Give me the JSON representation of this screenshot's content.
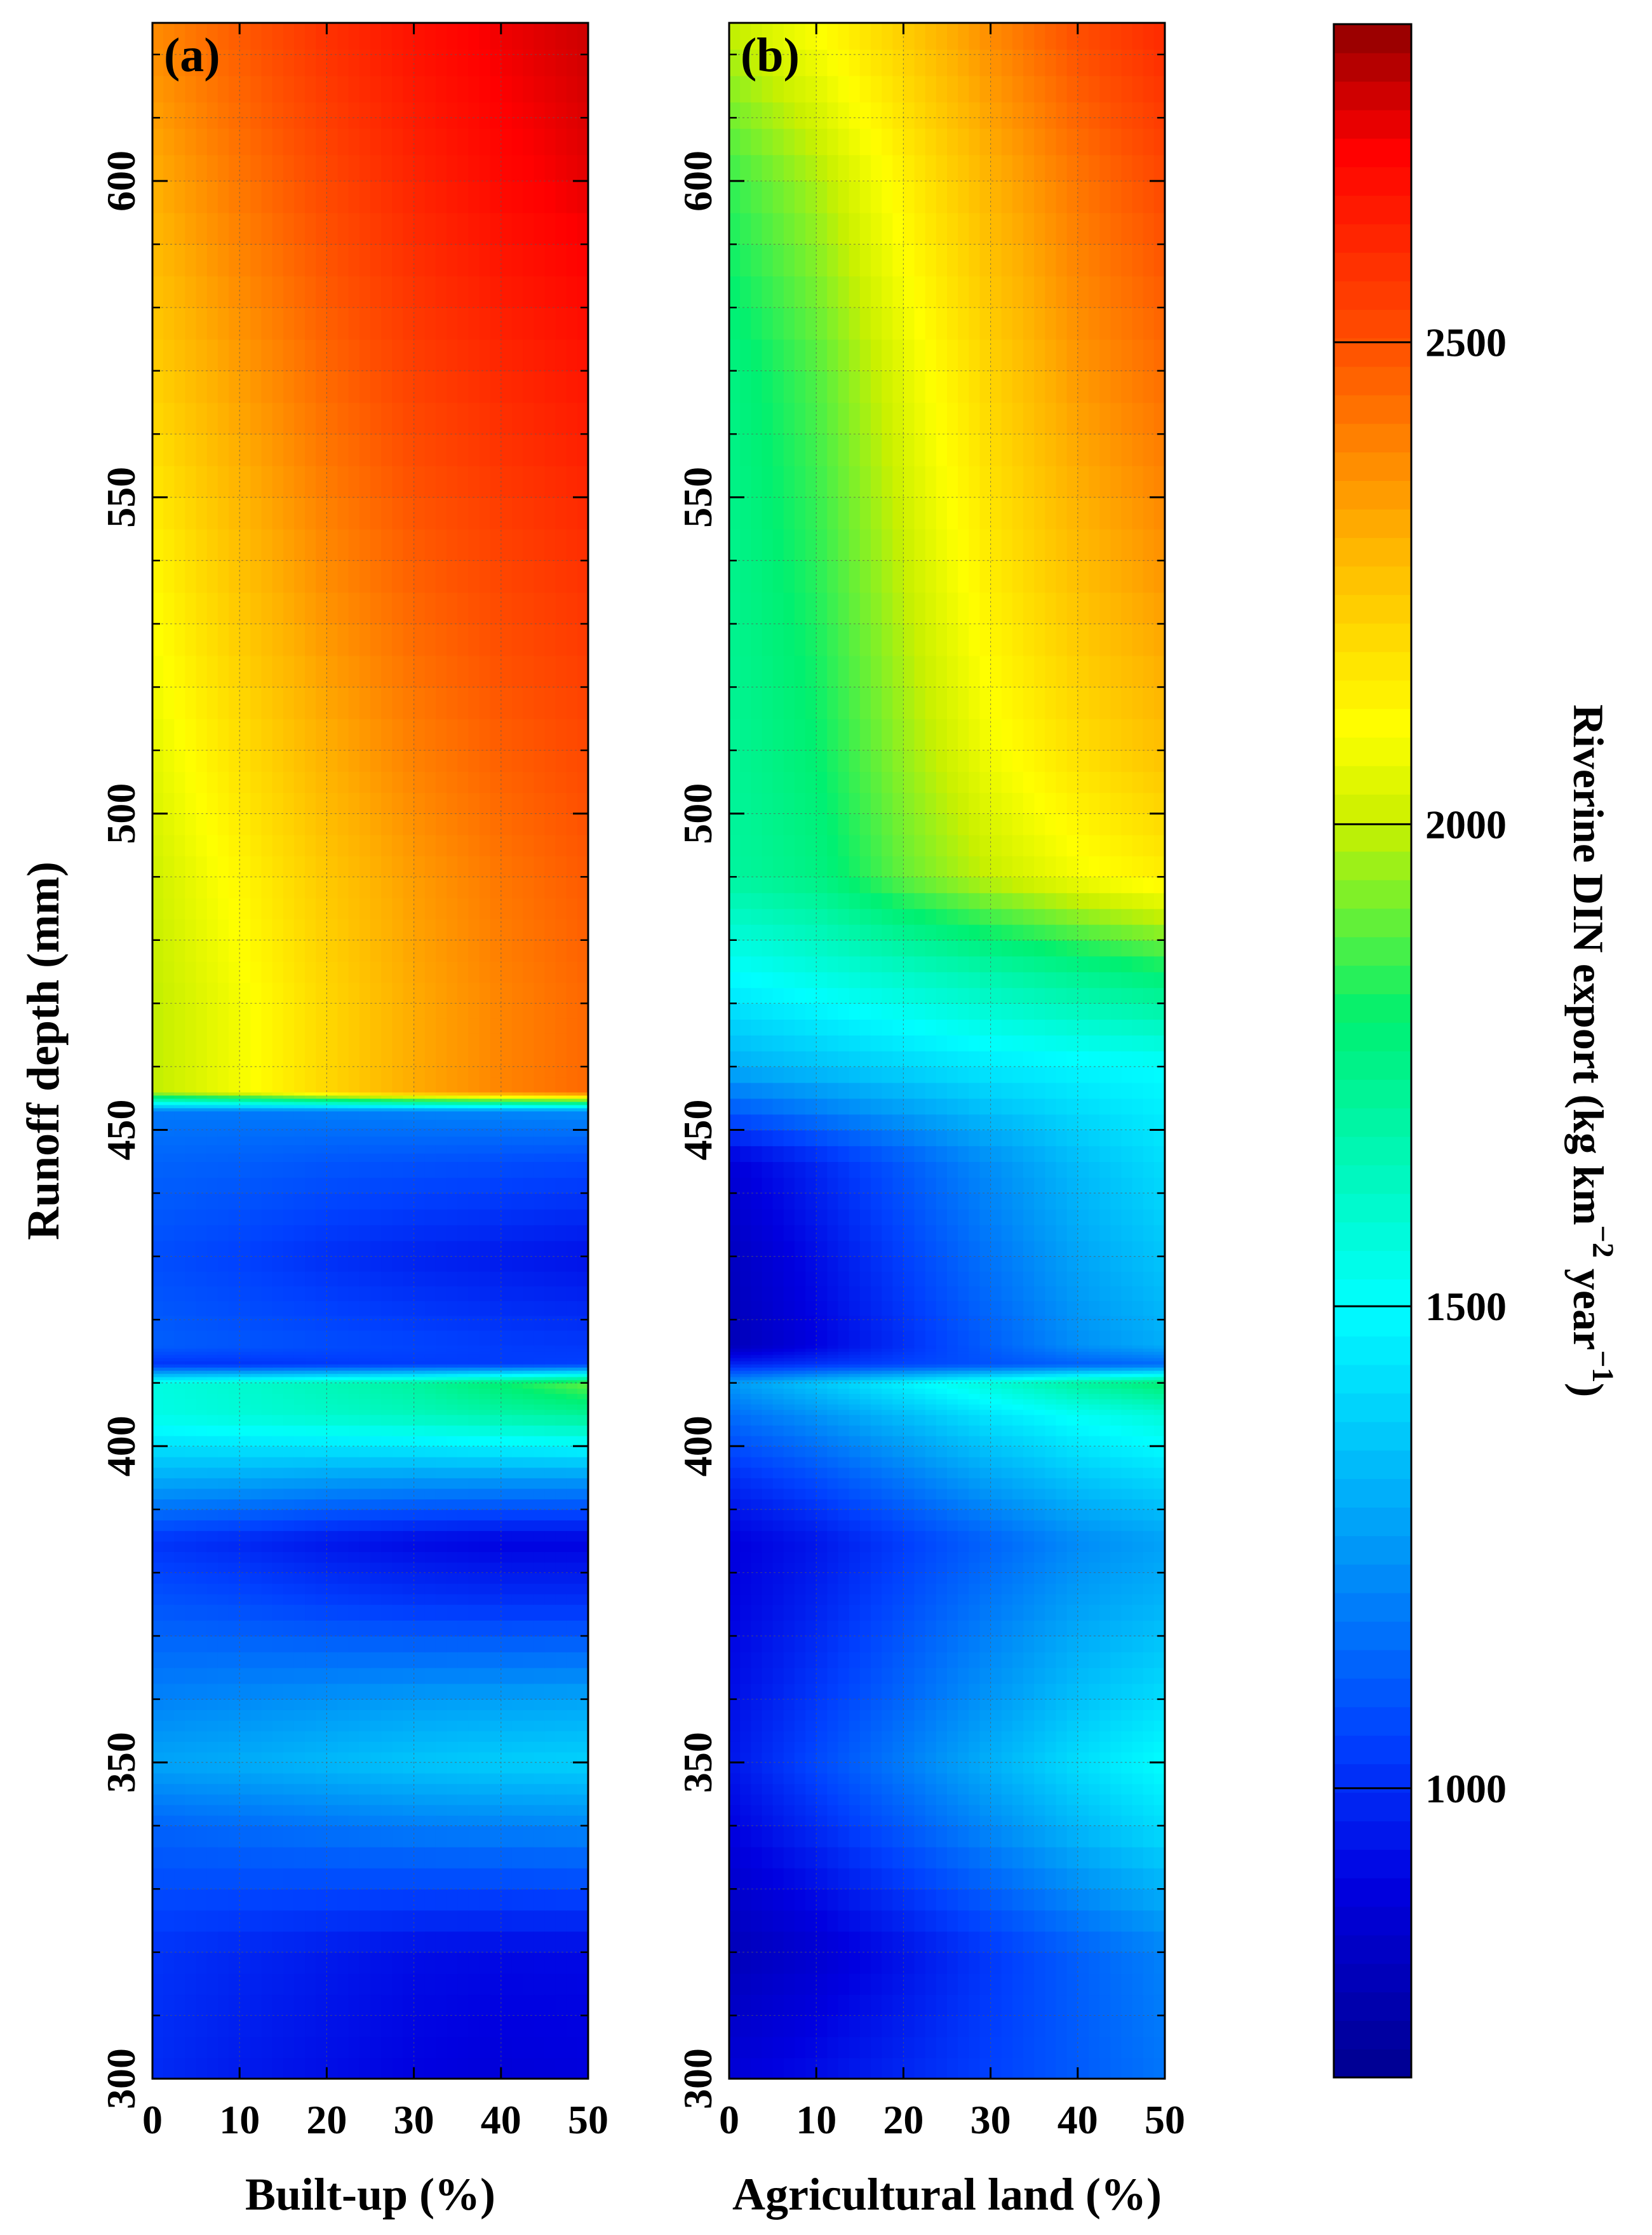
{
  "colorbar": {
    "label_main": "Riverine DIN export (kg km",
    "label_exp1": "−2",
    "label_mid": " year",
    "label_exp2": "−1",
    "label_close": ")",
    "range": [
      700,
      2830
    ],
    "ticks": [
      1000,
      1500,
      2000,
      2500
    ],
    "tick_labels": [
      "1000",
      "1500",
      "2000",
      "2500"
    ],
    "colors": [
      {
        "v": 700,
        "c": "#00008f"
      },
      {
        "v": 900,
        "c": "#0000e0"
      },
      {
        "v": 1050,
        "c": "#0040ff"
      },
      {
        "v": 1250,
        "c": "#0098f8"
      },
      {
        "v": 1500,
        "c": "#00ffff"
      },
      {
        "v": 1800,
        "c": "#00f070"
      },
      {
        "v": 2000,
        "c": "#c8f000"
      },
      {
        "v": 2100,
        "c": "#ffff00"
      },
      {
        "v": 2300,
        "c": "#ffb000"
      },
      {
        "v": 2500,
        "c": "#ff5000"
      },
      {
        "v": 2700,
        "c": "#ff0000"
      },
      {
        "v": 2830,
        "c": "#8f0000"
      }
    ]
  },
  "chart_data": [
    {
      "type": "heatmap",
      "panel_label": "(a)",
      "xlabel": "Built-up (%)",
      "ylabel": "Runoff depth (mm)",
      "xlim": [
        0,
        50
      ],
      "ylim": [
        300,
        625
      ],
      "x_ticks": [
        0,
        10,
        20,
        30,
        40,
        50
      ],
      "x_tick_labels": [
        "0",
        "10",
        "20",
        "30",
        "40",
        "50"
      ],
      "y_ticks": [
        300,
        350,
        400,
        450,
        500,
        550,
        600
      ],
      "y_tick_labels": [
        "300",
        "350",
        "400",
        "450",
        "500",
        "550",
        "600"
      ],
      "grid": true,
      "x": [
        0,
        10,
        20,
        30,
        40,
        50
      ],
      "y": [
        300,
        320,
        340,
        350,
        360,
        375,
        385,
        395,
        405,
        410,
        413,
        416,
        430,
        445,
        453,
        456,
        470,
        490,
        510,
        540,
        570,
        600,
        625
      ],
      "z": [
        [
          1000,
          960,
          930,
          900,
          880,
          890
        ],
        [
          1020,
          990,
          960,
          930,
          920,
          920
        ],
        [
          1130,
          1150,
          1170,
          1190,
          1200,
          1210
        ],
        [
          1280,
          1300,
          1330,
          1360,
          1380,
          1390
        ],
        [
          1200,
          1220,
          1240,
          1260,
          1270,
          1280
        ],
        [
          1100,
          1080,
          1050,
          1030,
          1020,
          1020
        ],
        [
          1020,
          990,
          950,
          920,
          900,
          900
        ],
        [
          1300,
          1290,
          1270,
          1260,
          1260,
          1260
        ],
        [
          1550,
          1580,
          1610,
          1640,
          1680,
          1720
        ],
        [
          1560,
          1600,
          1650,
          1700,
          1800,
          1900
        ],
        [
          1020,
          1020,
          1030,
          1040,
          1040,
          1050
        ],
        [
          1120,
          1100,
          1080,
          1060,
          1040,
          1030
        ],
        [
          1080,
          1050,
          1010,
          980,
          960,
          940
        ],
        [
          1130,
          1120,
          1100,
          1090,
          1080,
          1070
        ],
        [
          1180,
          1180,
          1190,
          1200,
          1210,
          1220
        ],
        [
          1990,
          2080,
          2200,
          2310,
          2390,
          2450
        ],
        [
          1990,
          2080,
          2200,
          2310,
          2390,
          2450
        ],
        [
          2010,
          2120,
          2240,
          2340,
          2420,
          2480
        ],
        [
          2050,
          2180,
          2300,
          2400,
          2470,
          2520
        ],
        [
          2120,
          2260,
          2380,
          2470,
          2530,
          2580
        ],
        [
          2220,
          2340,
          2450,
          2540,
          2600,
          2650
        ],
        [
          2300,
          2420,
          2520,
          2610,
          2680,
          2730
        ],
        [
          2380,
          2480,
          2580,
          2660,
          2720,
          2760
        ]
      ]
    },
    {
      "type": "heatmap",
      "panel_label": "(b)",
      "xlabel": "Agricultural land (%)",
      "ylabel": "",
      "xlim": [
        0,
        50
      ],
      "ylim": [
        300,
        625
      ],
      "x_ticks": [
        0,
        10,
        20,
        30,
        40,
        50
      ],
      "x_tick_labels": [
        "0",
        "10",
        "20",
        "30",
        "40",
        "50"
      ],
      "y_ticks": [
        300,
        350,
        400,
        450,
        500,
        550,
        600
      ],
      "y_tick_labels": [
        "300",
        "350",
        "400",
        "450",
        "500",
        "550",
        "600"
      ],
      "grid": true,
      "x": [
        0,
        10,
        20,
        30,
        40,
        50
      ],
      "y": [
        300,
        320,
        340,
        350,
        360,
        375,
        385,
        395,
        405,
        410,
        413,
        416,
        430,
        445,
        460,
        475,
        490,
        510,
        540,
        570,
        600,
        625
      ],
      "z": [
        [
          880,
          930,
          990,
          1050,
          1110,
          1170
        ],
        [
          800,
          860,
          940,
          1030,
          1120,
          1200
        ],
        [
          900,
          1000,
          1110,
          1220,
          1330,
          1420
        ],
        [
          950,
          1070,
          1190,
          1310,
          1420,
          1500
        ],
        [
          930,
          1030,
          1140,
          1250,
          1350,
          1420
        ],
        [
          900,
          980,
          1080,
          1180,
          1270,
          1320
        ],
        [
          890,
          950,
          1040,
          1130,
          1220,
          1270
        ],
        [
          1000,
          1080,
          1180,
          1280,
          1360,
          1410
        ],
        [
          1150,
          1240,
          1340,
          1440,
          1520,
          1580
        ],
        [
          1250,
          1360,
          1470,
          1580,
          1700,
          1800
        ],
        [
          980,
          1020,
          1060,
          1090,
          1120,
          1140
        ],
        [
          800,
          900,
          1010,
          1120,
          1230,
          1300
        ],
        [
          820,
          930,
          1050,
          1170,
          1280,
          1360
        ],
        [
          880,
          990,
          1110,
          1230,
          1340,
          1420
        ],
        [
          1300,
          1350,
          1400,
          1450,
          1480,
          1500
        ],
        [
          1500,
          1560,
          1620,
          1680,
          1740,
          1800
        ],
        [
          1700,
          1760,
          1900,
          2000,
          2080,
          2140
        ],
        [
          1720,
          1800,
          1950,
          2080,
          2180,
          2260
        ],
        [
          1740,
          1840,
          2000,
          2150,
          2270,
          2360
        ],
        [
          1760,
          1880,
          2050,
          2210,
          2350,
          2440
        ],
        [
          1850,
          1970,
          2130,
          2290,
          2420,
          2520
        ],
        [
          2000,
          2100,
          2230,
          2380,
          2510,
          2600
        ]
      ]
    }
  ]
}
